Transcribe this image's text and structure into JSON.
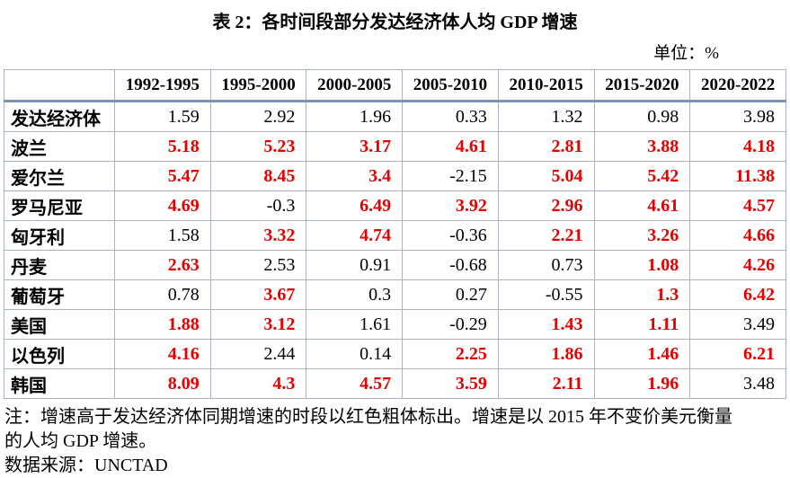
{
  "title": "表 2：各时间段部分发达经济体人均 GDP 增速",
  "unit_label": "单位：%",
  "colors": {
    "highlight_red": "#e60000",
    "border_light": "#a8b3c8",
    "header_rule": "#7e93b4",
    "text": "#000000"
  },
  "table": {
    "columns": [
      "1992-1995",
      "1995-2000",
      "2000-2005",
      "2005-2010",
      "2010-2015",
      "2015-2020",
      "2020-2022"
    ],
    "rows": [
      {
        "label": "发达经济体",
        "cells": [
          {
            "v": "1.59",
            "red": false
          },
          {
            "v": "2.92",
            "red": false
          },
          {
            "v": "1.96",
            "red": false
          },
          {
            "v": "0.33",
            "red": false
          },
          {
            "v": "1.32",
            "red": false
          },
          {
            "v": "0.98",
            "red": false
          },
          {
            "v": "3.98",
            "red": false
          }
        ]
      },
      {
        "label": "波兰",
        "cells": [
          {
            "v": "5.18",
            "red": true
          },
          {
            "v": "5.23",
            "red": true
          },
          {
            "v": "3.17",
            "red": true
          },
          {
            "v": "4.61",
            "red": true
          },
          {
            "v": "2.81",
            "red": true
          },
          {
            "v": "3.88",
            "red": true
          },
          {
            "v": "4.18",
            "red": true
          }
        ]
      },
      {
        "label": "爱尔兰",
        "cells": [
          {
            "v": "5.47",
            "red": true
          },
          {
            "v": "8.45",
            "red": true
          },
          {
            "v": "3.4",
            "red": true
          },
          {
            "v": "-2.15",
            "red": false
          },
          {
            "v": "5.04",
            "red": true
          },
          {
            "v": "5.42",
            "red": true
          },
          {
            "v": "11.38",
            "red": true
          }
        ]
      },
      {
        "label": "罗马尼亚",
        "cells": [
          {
            "v": "4.69",
            "red": true
          },
          {
            "v": "-0.3",
            "red": false
          },
          {
            "v": "6.49",
            "red": true
          },
          {
            "v": "3.92",
            "red": true
          },
          {
            "v": "2.96",
            "red": true
          },
          {
            "v": "4.61",
            "red": true
          },
          {
            "v": "4.57",
            "red": true
          }
        ]
      },
      {
        "label": "匈牙利",
        "cells": [
          {
            "v": "1.58",
            "red": false
          },
          {
            "v": "3.32",
            "red": true
          },
          {
            "v": "4.74",
            "red": true
          },
          {
            "v": "-0.36",
            "red": false
          },
          {
            "v": "2.21",
            "red": true
          },
          {
            "v": "3.26",
            "red": true
          },
          {
            "v": "4.66",
            "red": true
          }
        ]
      },
      {
        "label": "丹麦",
        "cells": [
          {
            "v": "2.63",
            "red": true
          },
          {
            "v": "2.53",
            "red": false
          },
          {
            "v": "0.91",
            "red": false
          },
          {
            "v": "-0.68",
            "red": false
          },
          {
            "v": "0.73",
            "red": false
          },
          {
            "v": "1.08",
            "red": true
          },
          {
            "v": "4.26",
            "red": true
          }
        ]
      },
      {
        "label": "葡萄牙",
        "cells": [
          {
            "v": "0.78",
            "red": false
          },
          {
            "v": "3.67",
            "red": true
          },
          {
            "v": "0.3",
            "red": false
          },
          {
            "v": "0.27",
            "red": false
          },
          {
            "v": "-0.55",
            "red": false
          },
          {
            "v": "1.3",
            "red": true
          },
          {
            "v": "6.42",
            "red": true
          }
        ]
      },
      {
        "label": "美国",
        "cells": [
          {
            "v": "1.88",
            "red": true
          },
          {
            "v": "3.12",
            "red": true
          },
          {
            "v": "1.61",
            "red": false
          },
          {
            "v": "-0.29",
            "red": false
          },
          {
            "v": "1.43",
            "red": true
          },
          {
            "v": "1.11",
            "red": true
          },
          {
            "v": "3.49",
            "red": false
          }
        ]
      },
      {
        "label": "以色列",
        "cells": [
          {
            "v": "4.16",
            "red": true
          },
          {
            "v": "2.44",
            "red": false
          },
          {
            "v": "0.14",
            "red": false
          },
          {
            "v": "2.25",
            "red": true
          },
          {
            "v": "1.86",
            "red": true
          },
          {
            "v": "1.46",
            "red": true
          },
          {
            "v": "6.21",
            "red": true
          }
        ]
      },
      {
        "label": "韩国",
        "cells": [
          {
            "v": "8.09",
            "red": true
          },
          {
            "v": "4.3",
            "red": true
          },
          {
            "v": "4.57",
            "red": true
          },
          {
            "v": "3.59",
            "red": true
          },
          {
            "v": "2.11",
            "red": true
          },
          {
            "v": "1.96",
            "red": true
          },
          {
            "v": "3.48",
            "red": false
          }
        ]
      }
    ]
  },
  "notes": [
    "注：增速高于发达经济体同期增速的时段以红色粗体标出。增速是以 2015 年不变价美元衡量",
    "的人均 GDP 增速。",
    "数据来源：UNCTAD"
  ]
}
